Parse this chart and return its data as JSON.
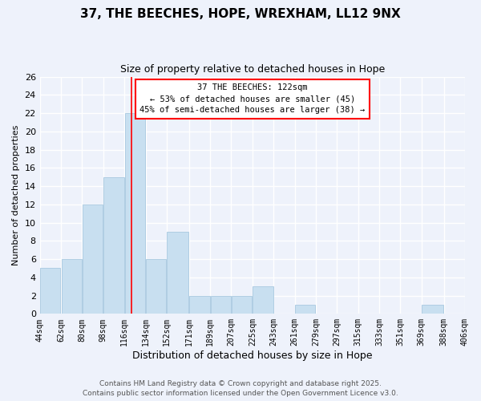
{
  "title": "37, THE BEECHES, HOPE, WREXHAM, LL12 9NX",
  "subtitle": "Size of property relative to detached houses in Hope",
  "xlabel": "Distribution of detached houses by size in Hope",
  "ylabel": "Number of detached properties",
  "bar_color": "#c8dff0",
  "bar_edgecolor": "#a8c8e0",
  "bar_left_edges": [
    44,
    62,
    80,
    98,
    116,
    134,
    152,
    171,
    189,
    207,
    225,
    243,
    261,
    279,
    297,
    315,
    333,
    351,
    369,
    388
  ],
  "bar_widths": [
    18,
    18,
    18,
    18,
    18,
    18,
    19,
    18,
    18,
    18,
    18,
    18,
    18,
    18,
    18,
    18,
    18,
    18,
    19,
    18
  ],
  "bar_heights": [
    5,
    6,
    12,
    15,
    22,
    6,
    9,
    2,
    2,
    2,
    3,
    0,
    1,
    0,
    0,
    0,
    0,
    0,
    1,
    0
  ],
  "tick_labels": [
    "44sqm",
    "62sqm",
    "80sqm",
    "98sqm",
    "116sqm",
    "134sqm",
    "152sqm",
    "171sqm",
    "189sqm",
    "207sqm",
    "225sqm",
    "243sqm",
    "261sqm",
    "279sqm",
    "297sqm",
    "315sqm",
    "333sqm",
    "351sqm",
    "369sqm",
    "388sqm",
    "406sqm"
  ],
  "tick_positions": [
    44,
    62,
    80,
    98,
    116,
    134,
    152,
    171,
    189,
    207,
    225,
    243,
    261,
    279,
    297,
    315,
    333,
    351,
    369,
    388,
    406
  ],
  "red_line_x": 122,
  "xlim": [
    44,
    406
  ],
  "ylim": [
    0,
    26
  ],
  "yticks": [
    0,
    2,
    4,
    6,
    8,
    10,
    12,
    14,
    16,
    18,
    20,
    22,
    24,
    26
  ],
  "annotation_title": "37 THE BEECHES: 122sqm",
  "annotation_line1": "← 53% of detached houses are smaller (45)",
  "annotation_line2": "45% of semi-detached houses are larger (38) →",
  "footnote1": "Contains HM Land Registry data © Crown copyright and database right 2025.",
  "footnote2": "Contains public sector information licensed under the Open Government Licence v3.0.",
  "bg_color": "#eef2fb",
  "grid_color": "#ffffff",
  "title_fontsize": 11,
  "subtitle_fontsize": 9,
  "xlabel_fontsize": 9,
  "ylabel_fontsize": 8,
  "tick_fontsize": 7,
  "ytick_fontsize": 8,
  "footnote_fontsize": 6.5
}
